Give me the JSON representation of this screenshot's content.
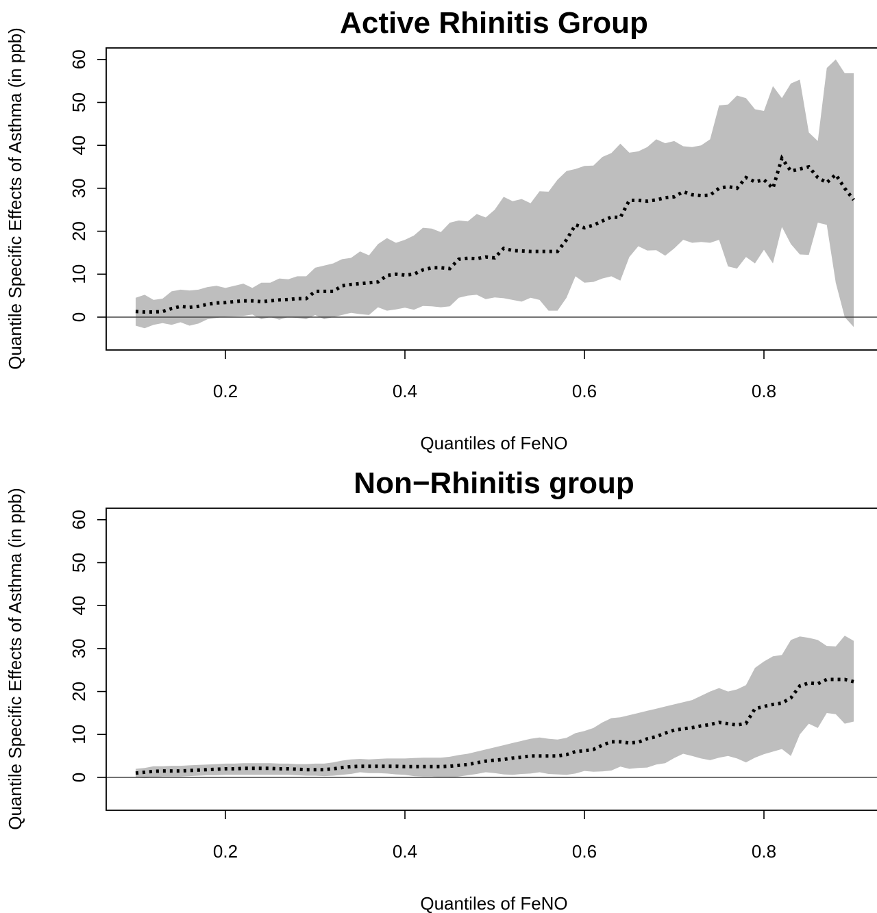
{
  "chart_data": [
    {
      "type": "line",
      "title": "Active Rhinitis Group",
      "xlabel": "Quantiles of FeNO",
      "ylabel": "Quantile Specific Effects of Asthma (in ppb)",
      "xlim": [
        0.06,
        0.9
      ],
      "ylim": [
        -7,
        62
      ],
      "x_ticks": [
        "0.2",
        "0.4",
        "0.6",
        "0.8"
      ],
      "y_ticks": [
        "0",
        "10",
        "20",
        "30",
        "40",
        "50",
        "60"
      ],
      "grid": false,
      "line_style": "dotted",
      "band_color": "#bebebe",
      "reference_line_y": 0,
      "series": [
        {
          "x": [
            0.1,
            0.11,
            0.12,
            0.13,
            0.14,
            0.15,
            0.16,
            0.17,
            0.18,
            0.19,
            0.2,
            0.21,
            0.22,
            0.23,
            0.24,
            0.25,
            0.26,
            0.27,
            0.28,
            0.29,
            0.3,
            0.31,
            0.32,
            0.33,
            0.34,
            0.35,
            0.36,
            0.37,
            0.38,
            0.39,
            0.4,
            0.41,
            0.42,
            0.43,
            0.44,
            0.45,
            0.46,
            0.47,
            0.48,
            0.49,
            0.5,
            0.51,
            0.52,
            0.53,
            0.54,
            0.55,
            0.56,
            0.57,
            0.58,
            0.59,
            0.6,
            0.61,
            0.62,
            0.63,
            0.64,
            0.65,
            0.66,
            0.67,
            0.68,
            0.69,
            0.7,
            0.71,
            0.72,
            0.73,
            0.74,
            0.75,
            0.76,
            0.77,
            0.78,
            0.79,
            0.8,
            0.81,
            0.82,
            0.83,
            0.84,
            0.85,
            0.86,
            0.87,
            0.88,
            0.89,
            0.9
          ],
          "estimate": [
            1.3,
            1.2,
            1.2,
            1.3,
            2.0,
            2.5,
            2.3,
            2.5,
            3.0,
            3.3,
            3.4,
            3.6,
            3.8,
            3.8,
            3.6,
            3.8,
            4.0,
            4.1,
            4.3,
            4.3,
            6.0,
            6.0,
            6.0,
            7.3,
            7.6,
            7.8,
            8.0,
            8.2,
            9.7,
            10.0,
            9.8,
            10.0,
            11.0,
            11.5,
            11.5,
            11.3,
            13.5,
            13.7,
            13.6,
            14.0,
            13.8,
            16.0,
            15.5,
            15.4,
            15.3,
            15.3,
            15.3,
            15.3,
            18.0,
            21.5,
            20.8,
            21.4,
            22.4,
            23.3,
            23.2,
            27.2,
            27.2,
            27.0,
            27.3,
            27.8,
            28.0,
            29.2,
            28.5,
            28.3,
            28.4,
            30.0,
            30.4,
            30.0,
            32.5,
            31.5,
            32.0,
            30.0,
            37.0,
            34.0,
            34.5,
            35.0,
            32.5,
            31.3,
            33.2,
            30.0,
            27.3
          ],
          "lower": [
            -2.0,
            -2.6,
            -1.8,
            -1.4,
            -1.8,
            -1.2,
            -2.0,
            -1.5,
            -0.5,
            -0.2,
            0.1,
            0.2,
            0.3,
            0.6,
            -0.5,
            0.0,
            -0.6,
            0.0,
            -0.2,
            -0.5,
            0.5,
            -0.5,
            0.0,
            0.5,
            1.0,
            0.7,
            0.5,
            2.3,
            1.5,
            1.8,
            2.2,
            1.7,
            2.6,
            2.5,
            2.3,
            2.5,
            4.5,
            5.0,
            5.2,
            4.2,
            4.6,
            4.4,
            4.0,
            3.6,
            4.5,
            4.0,
            1.5,
            1.5,
            4.5,
            9.5,
            8.0,
            8.2,
            9.0,
            9.5,
            8.5,
            14.0,
            16.5,
            15.5,
            15.6,
            14.3,
            16.0,
            18.0,
            17.3,
            17.5,
            17.3,
            18.0,
            11.8,
            11.3,
            14.0,
            12.5,
            15.7,
            12.5,
            21.0,
            17.0,
            14.6,
            14.5,
            22.0,
            21.5,
            8.0,
            0.0,
            -2.3
          ],
          "upper": [
            4.5,
            5.2,
            4.0,
            4.3,
            6.0,
            6.4,
            6.2,
            6.4,
            7.0,
            7.3,
            6.8,
            7.3,
            7.8,
            6.8,
            8.0,
            8.0,
            9.0,
            8.8,
            9.5,
            9.5,
            11.5,
            12.0,
            12.5,
            13.5,
            13.8,
            15.3,
            14.4,
            17.0,
            18.4,
            17.3,
            18.0,
            19.0,
            20.8,
            20.6,
            19.8,
            22.0,
            22.5,
            22.3,
            24.0,
            23.2,
            25.0,
            28.0,
            27.0,
            27.5,
            26.5,
            29.3,
            29.2,
            32.0,
            34.0,
            34.5,
            35.2,
            35.3,
            37.3,
            38.2,
            40.4,
            38.3,
            38.6,
            39.6,
            41.4,
            40.5,
            41.0,
            39.8,
            39.6,
            40.0,
            41.4,
            49.3,
            49.5,
            51.6,
            51.0,
            48.4,
            48.0,
            53.8,
            51.0,
            54.4,
            55.3,
            43.0,
            41.0,
            58.0,
            60.0,
            56.8,
            56.8
          ]
        }
      ]
    },
    {
      "type": "line",
      "title": "Non−Rhinitis group",
      "xlabel": "Quantiles of FeNO",
      "ylabel": "Quantile Specific Effects of Asthma (in ppb)",
      "xlim": [
        0.06,
        0.9
      ],
      "ylim": [
        -7,
        62
      ],
      "x_ticks": [
        "0.2",
        "0.4",
        "0.6",
        "0.8"
      ],
      "y_ticks": [
        "0",
        "10",
        "20",
        "30",
        "40",
        "50",
        "60"
      ],
      "grid": false,
      "line_style": "dotted",
      "band_color": "#bebebe",
      "reference_line_y": 0,
      "series": [
        {
          "x": [
            0.1,
            0.11,
            0.12,
            0.13,
            0.14,
            0.15,
            0.16,
            0.17,
            0.18,
            0.19,
            0.2,
            0.21,
            0.22,
            0.23,
            0.24,
            0.25,
            0.26,
            0.27,
            0.28,
            0.29,
            0.3,
            0.31,
            0.32,
            0.33,
            0.34,
            0.35,
            0.36,
            0.37,
            0.38,
            0.39,
            0.4,
            0.41,
            0.42,
            0.43,
            0.44,
            0.45,
            0.46,
            0.47,
            0.48,
            0.49,
            0.5,
            0.51,
            0.52,
            0.53,
            0.54,
            0.55,
            0.56,
            0.57,
            0.58,
            0.59,
            0.6,
            0.61,
            0.62,
            0.63,
            0.64,
            0.65,
            0.66,
            0.67,
            0.68,
            0.69,
            0.7,
            0.71,
            0.72,
            0.73,
            0.74,
            0.75,
            0.76,
            0.77,
            0.78,
            0.79,
            0.8,
            0.81,
            0.82,
            0.83,
            0.84,
            0.85,
            0.86,
            0.87,
            0.88,
            0.89,
            0.9
          ],
          "estimate": [
            1.0,
            1.2,
            1.4,
            1.5,
            1.5,
            1.5,
            1.6,
            1.7,
            1.8,
            1.9,
            2.0,
            2.0,
            2.1,
            2.1,
            2.1,
            2.1,
            2.0,
            2.0,
            1.9,
            1.8,
            1.8,
            1.8,
            2.0,
            2.3,
            2.5,
            2.6,
            2.6,
            2.6,
            2.6,
            2.6,
            2.5,
            2.5,
            2.5,
            2.5,
            2.5,
            2.6,
            2.8,
            3.0,
            3.4,
            3.8,
            4.0,
            4.2,
            4.5,
            4.7,
            5.0,
            5.0,
            5.0,
            5.0,
            5.3,
            6.0,
            6.2,
            6.5,
            7.5,
            8.3,
            8.3,
            8.0,
            8.2,
            9.0,
            9.5,
            10.3,
            11.0,
            11.3,
            11.6,
            12.0,
            12.3,
            12.8,
            12.5,
            12.2,
            12.6,
            16.0,
            16.5,
            17.0,
            17.3,
            18.5,
            21.3,
            22.0,
            21.8,
            22.8,
            22.8,
            22.8,
            22.3
          ],
          "lower": [
            0.0,
            -0.2,
            0.0,
            0.2,
            0.2,
            0.2,
            0.3,
            0.4,
            0.5,
            0.5,
            0.6,
            0.6,
            0.6,
            0.6,
            0.6,
            0.6,
            0.6,
            0.6,
            0.5,
            0.4,
            0.4,
            0.3,
            0.4,
            0.6,
            0.8,
            1.2,
            1.0,
            1.0,
            0.9,
            0.7,
            0.6,
            0.3,
            0.2,
            0.2,
            0.0,
            -0.1,
            0.2,
            0.5,
            0.8,
            1.2,
            1.0,
            0.7,
            0.6,
            0.8,
            0.9,
            1.2,
            0.8,
            0.7,
            0.6,
            0.9,
            1.5,
            1.3,
            1.4,
            1.6,
            2.5,
            2.0,
            2.2,
            2.3,
            3.0,
            3.3,
            4.5,
            5.5,
            5.0,
            4.4,
            4.0,
            4.6,
            5.0,
            4.4,
            3.5,
            4.6,
            5.4,
            6.0,
            6.6,
            5.0,
            10.0,
            12.5,
            11.5,
            15.0,
            14.7,
            12.5,
            13.0
          ],
          "upper": [
            2.0,
            2.2,
            2.6,
            2.6,
            2.7,
            2.7,
            2.8,
            2.9,
            3.0,
            3.1,
            3.2,
            3.2,
            3.3,
            3.3,
            3.3,
            3.3,
            3.2,
            3.2,
            3.1,
            3.1,
            3.2,
            3.2,
            3.5,
            3.9,
            4.2,
            4.3,
            4.2,
            4.3,
            4.4,
            4.4,
            4.4,
            4.5,
            4.6,
            4.6,
            4.6,
            4.8,
            5.2,
            5.5,
            6.0,
            6.5,
            7.0,
            7.5,
            8.0,
            8.5,
            9.0,
            9.3,
            9.0,
            8.8,
            9.2,
            10.3,
            10.8,
            11.5,
            12.8,
            13.8,
            14.0,
            14.5,
            15.0,
            15.5,
            16.0,
            16.5,
            17.0,
            17.5,
            18.0,
            19.0,
            20.0,
            20.8,
            20.0,
            20.5,
            21.5,
            25.5,
            27.0,
            28.2,
            28.5,
            32.0,
            32.8,
            32.5,
            32.0,
            30.6,
            30.5,
            33.0,
            31.8
          ]
        }
      ]
    }
  ]
}
